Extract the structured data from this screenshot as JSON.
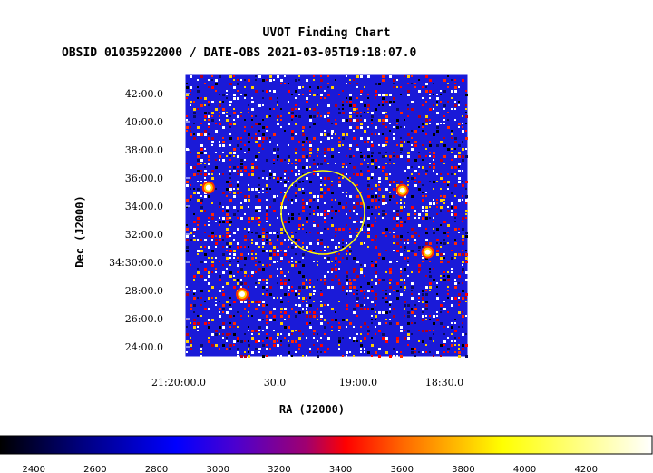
{
  "header": {
    "title": "UVOT Finding Chart",
    "subtitle": "OBSID 01035922000 / DATE-OBS 2021-03-05T19:18:07.0"
  },
  "chart_data": {
    "type": "heatmap",
    "title": "UVOT Finding Chart",
    "subtitle": "OBSID 01035922000 / DATE-OBS 2021-03-05T19:18:07.0",
    "xlabel": "RA (J2000)",
    "ylabel": "Dec (J2000)",
    "x_ticks": [
      "21:20:00.0",
      "30.0",
      "19:00.0",
      "18:30.0"
    ],
    "y_ticks": [
      "42:00.0",
      "40:00.0",
      "38:00.0",
      "36:00.0",
      "34:00.0",
      "32:00.0",
      "34:30:00.0",
      "28:00.0",
      "26:00.0",
      "24:00.0"
    ],
    "colorbar": {
      "ticks": [
        2400,
        2600,
        2800,
        3000,
        3200,
        3400,
        3600,
        3800,
        4000,
        4200
      ],
      "range": [
        2290,
        4415
      ],
      "colors": [
        "#000000",
        "#0000ff",
        "#ff0000",
        "#ffff00",
        "#ffffff"
      ]
    },
    "bright_sources": [
      {
        "x": "0.86",
        "y": "0.63"
      },
      {
        "x": "0.77",
        "y": "0.41"
      },
      {
        "x": "0.08",
        "y": "0.40"
      },
      {
        "x": "0.20",
        "y": "0.78"
      }
    ],
    "target_circle_color": "#ffff00"
  }
}
